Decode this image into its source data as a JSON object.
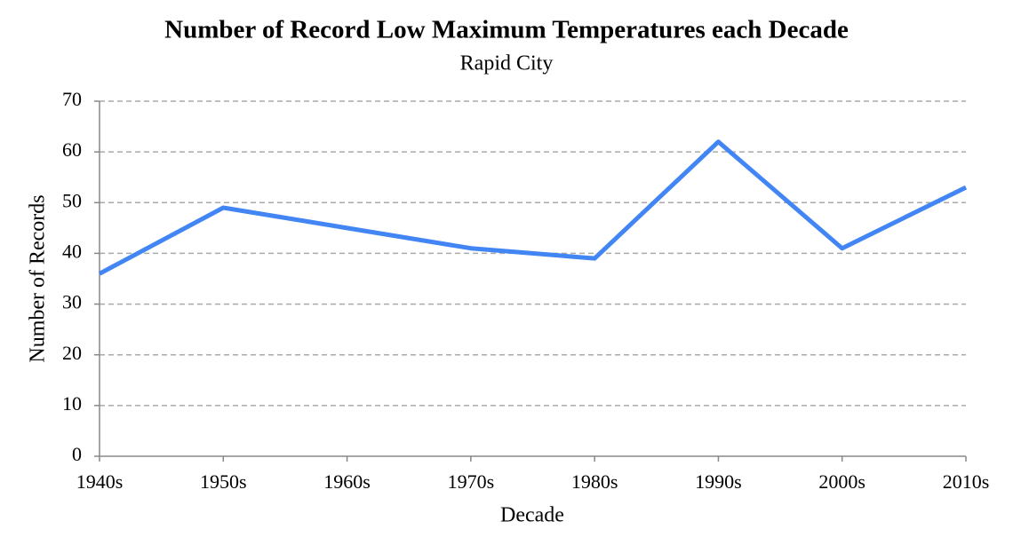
{
  "chart_data": {
    "type": "line",
    "title": "Number of Record Low Maximum Temperatures each Decade",
    "subtitle": "Rapid City",
    "x_label": "Decade",
    "y_label": "Number of Records",
    "categories": [
      "1940s",
      "1950s",
      "1960s",
      "1970s",
      "1980s",
      "1990s",
      "2000s",
      "2010s"
    ],
    "series": [
      {
        "name": "Records",
        "color": "#4285f4",
        "values": [
          36,
          49,
          45,
          41,
          39,
          62,
          41,
          53
        ]
      }
    ],
    "ylim": [
      0,
      70
    ],
    "yticks": [
      0,
      10,
      20,
      30,
      40,
      50,
      60,
      70
    ],
    "grid": true
  }
}
